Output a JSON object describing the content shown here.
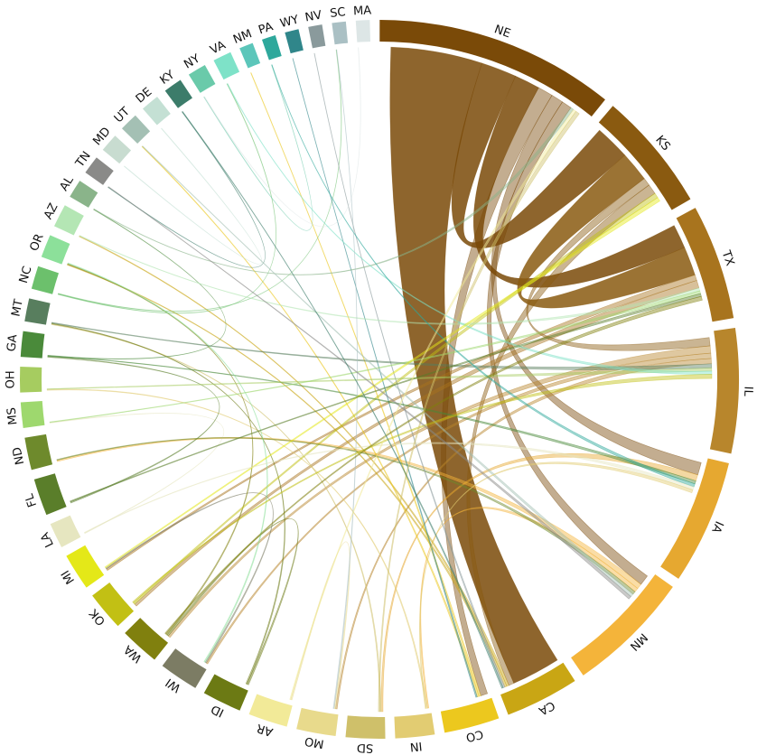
{
  "diagram": {
    "type": "chord",
    "segments": [
      {
        "id": "NE",
        "label": "NE",
        "color": "#7a4a08",
        "weight": 5.2
      },
      {
        "id": "KS",
        "label": "KS",
        "color": "#8a5a10",
        "weight": 2.6
      },
      {
        "id": "TX",
        "label": "TX",
        "color": "#a8741e",
        "weight": 2.5
      },
      {
        "id": "IL",
        "label": "IL",
        "color": "#b8862c",
        "weight": 2.7
      },
      {
        "id": "IA",
        "label": "IA",
        "color": "#e6a830",
        "weight": 2.7
      },
      {
        "id": "MN",
        "label": "MN",
        "color": "#f4b43a",
        "weight": 2.7
      },
      {
        "id": "CA",
        "label": "CA",
        "color": "#c9a614",
        "weight": 1.6
      },
      {
        "id": "CO",
        "label": "CO",
        "color": "#ecc81e",
        "weight": 1.2
      },
      {
        "id": "IN",
        "label": "IN",
        "color": "#e2cc72",
        "weight": 0.85
      },
      {
        "id": "SD",
        "label": "SD",
        "color": "#cfc06a",
        "weight": 0.85
      },
      {
        "id": "MO",
        "label": "MO",
        "color": "#e8da8c",
        "weight": 0.85
      },
      {
        "id": "AR",
        "label": "AR",
        "color": "#f2ea98",
        "weight": 0.85
      },
      {
        "id": "ID",
        "label": "ID",
        "color": "#6c7a14",
        "weight": 0.85
      },
      {
        "id": "WI",
        "label": "WI",
        "color": "#7c7c64",
        "weight": 0.85
      },
      {
        "id": "WA",
        "label": "WA",
        "color": "#80800e",
        "weight": 0.85
      },
      {
        "id": "OK",
        "label": "OK",
        "color": "#c2c014",
        "weight": 0.85
      },
      {
        "id": "MI",
        "label": "MI",
        "color": "#e4e818",
        "weight": 0.8
      },
      {
        "id": "LA",
        "label": "LA",
        "color": "#e6e6c0",
        "weight": 0.55
      },
      {
        "id": "FL",
        "label": "FL",
        "color": "#5a7e2a",
        "weight": 0.8
      },
      {
        "id": "ND",
        "label": "ND",
        "color": "#6e8a2c",
        "weight": 0.7
      },
      {
        "id": "MS",
        "label": "MS",
        "color": "#9ed86e",
        "weight": 0.55
      },
      {
        "id": "OH",
        "label": "OH",
        "color": "#a6cc60",
        "weight": 0.55
      },
      {
        "id": "GA",
        "label": "GA",
        "color": "#4a8a3a",
        "weight": 0.55
      },
      {
        "id": "MT",
        "label": "MT",
        "color": "#587e5e",
        "weight": 0.5
      },
      {
        "id": "NC",
        "label": "NC",
        "color": "#6cc06c",
        "weight": 0.5
      },
      {
        "id": "OR",
        "label": "OR",
        "color": "#8ce09a",
        "weight": 0.5
      },
      {
        "id": "AZ",
        "label": "AZ",
        "color": "#b4e6b4",
        "weight": 0.5
      },
      {
        "id": "AL",
        "label": "AL",
        "color": "#8ab48a",
        "weight": 0.4
      },
      {
        "id": "TN",
        "label": "TN",
        "color": "#8a8a88",
        "weight": 0.4
      },
      {
        "id": "MD",
        "label": "MD",
        "color": "#c8dcd0",
        "weight": 0.4
      },
      {
        "id": "UT",
        "label": "UT",
        "color": "#a4c0b4",
        "weight": 0.4
      },
      {
        "id": "DE",
        "label": "DE",
        "color": "#c4e0d4",
        "weight": 0.4
      },
      {
        "id": "KY",
        "label": "KY",
        "color": "#3c7c6a",
        "weight": 0.4
      },
      {
        "id": "NY",
        "label": "NY",
        "color": "#6acaaa",
        "weight": 0.4
      },
      {
        "id": "VA",
        "label": "VA",
        "color": "#7ee2c8",
        "weight": 0.4
      },
      {
        "id": "NM",
        "label": "NM",
        "color": "#5cc6ba",
        "weight": 0.3
      },
      {
        "id": "PA",
        "label": "PA",
        "color": "#2ea89c",
        "weight": 0.3
      },
      {
        "id": "WY",
        "label": "WY",
        "color": "#30868a",
        "weight": 0.3
      },
      {
        "id": "NV",
        "label": "NV",
        "color": "#8a9a9c",
        "weight": 0.3
      },
      {
        "id": "SC",
        "label": "SC",
        "color": "#aac0c4",
        "weight": 0.3
      },
      {
        "id": "MA",
        "label": "MA",
        "color": "#dde6e6",
        "weight": 0.3
      }
    ],
    "links": [
      {
        "source": "NE",
        "target": "CA",
        "value": 0.9
      },
      {
        "source": "NE",
        "target": "KS",
        "value": 0.35
      },
      {
        "source": "NE",
        "target": "TX",
        "value": 0.25
      },
      {
        "source": "NE",
        "target": "CO",
        "value": 0.15
      },
      {
        "source": "NE",
        "target": "IA",
        "value": 0.12
      },
      {
        "source": "NE",
        "target": "MN",
        "value": 0.1
      },
      {
        "source": "KS",
        "target": "TX",
        "value": 0.3
      },
      {
        "source": "KS",
        "target": "IL",
        "value": 0.08
      },
      {
        "source": "KS",
        "target": "CA",
        "value": 0.1
      },
      {
        "source": "TX",
        "target": "MI",
        "value": 0.06
      },
      {
        "source": "TX",
        "target": "OK",
        "value": 0.08
      },
      {
        "source": "IL",
        "target": "WA",
        "value": 0.07
      },
      {
        "source": "IL",
        "target": "WI",
        "value": 0.05
      },
      {
        "source": "IL",
        "target": "MO",
        "value": 0.05
      },
      {
        "source": "IA",
        "target": "SD",
        "value": 0.06
      },
      {
        "source": "MN",
        "target": "ND",
        "value": 0.05
      },
      {
        "source": "MN",
        "target": "IN",
        "value": 0.04
      },
      {
        "source": "CA",
        "target": "AZ",
        "value": 0.04
      },
      {
        "source": "CA",
        "target": "OR",
        "value": 0.04
      },
      {
        "source": "CO",
        "target": "NM",
        "value": 0.04
      },
      {
        "source": "CO",
        "target": "UT",
        "value": 0.04
      },
      {
        "source": "IN",
        "target": "OH",
        "value": 0.04
      },
      {
        "source": "SD",
        "target": "MT",
        "value": 0.04
      },
      {
        "source": "MO",
        "target": "AR",
        "value": 0.04
      },
      {
        "source": "ID",
        "target": "WA",
        "value": 0.05
      },
      {
        "source": "ID",
        "target": "MT",
        "value": 0.04
      },
      {
        "source": "WI",
        "target": "MI",
        "value": 0.04
      },
      {
        "source": "WA",
        "target": "OR",
        "value": 0.04
      },
      {
        "source": "OK",
        "target": "KS",
        "value": 0.05
      },
      {
        "source": "LA",
        "target": "MS",
        "value": 0.03
      },
      {
        "source": "FL",
        "target": "GA",
        "value": 0.04
      },
      {
        "source": "ND",
        "target": "MN",
        "value": 0.03
      },
      {
        "source": "GA",
        "target": "AL",
        "value": 0.03
      },
      {
        "source": "NC",
        "target": "VA",
        "value": 0.03
      },
      {
        "source": "NC",
        "target": "SC",
        "value": 0.03
      },
      {
        "source": "KY",
        "target": "TN",
        "value": 0.03
      },
      {
        "source": "NY",
        "target": "PA",
        "value": 0.03
      },
      {
        "source": "DE",
        "target": "MD",
        "value": 0.03
      },
      {
        "source": "WY",
        "target": "CO",
        "value": 0.03
      },
      {
        "source": "NV",
        "target": "CA",
        "value": 0.03
      },
      {
        "source": "MA",
        "target": "NY",
        "value": 0.03
      },
      {
        "source": "AZ",
        "target": "TX",
        "value": 0.03
      },
      {
        "source": "MT",
        "target": "IL",
        "value": 0.04
      },
      {
        "source": "GA",
        "target": "IA",
        "value": 0.03
      },
      {
        "source": "OH",
        "target": "IL",
        "value": 0.03
      },
      {
        "source": "MS",
        "target": "TX",
        "value": 0.03
      },
      {
        "source": "OR",
        "target": "WI",
        "value": 0.04
      },
      {
        "source": "AL",
        "target": "NE",
        "value": 0.03
      },
      {
        "source": "UT",
        "target": "MN",
        "value": 0.03
      },
      {
        "source": "VA",
        "target": "IL",
        "value": 0.03
      },
      {
        "source": "PA",
        "target": "IA",
        "value": 0.03
      },
      {
        "source": "SC",
        "target": "MO",
        "value": 0.03
      },
      {
        "source": "MI",
        "target": "KS",
        "value": 0.04
      },
      {
        "source": "LA",
        "target": "IA",
        "value": 0.03
      },
      {
        "source": "FL",
        "target": "TX",
        "value": 0.03
      },
      {
        "source": "OK",
        "target": "IL",
        "value": 0.04
      },
      {
        "source": "WA",
        "target": "TX",
        "value": 0.04
      },
      {
        "source": "AR",
        "target": "NE",
        "value": 0.03
      },
      {
        "source": "SD",
        "target": "NE",
        "value": 0.04
      },
      {
        "source": "IN",
        "target": "IA",
        "value": 0.03
      },
      {
        "source": "TN",
        "target": "MN",
        "value": 0.03
      },
      {
        "source": "KY",
        "target": "CA",
        "value": 0.03
      }
    ]
  }
}
